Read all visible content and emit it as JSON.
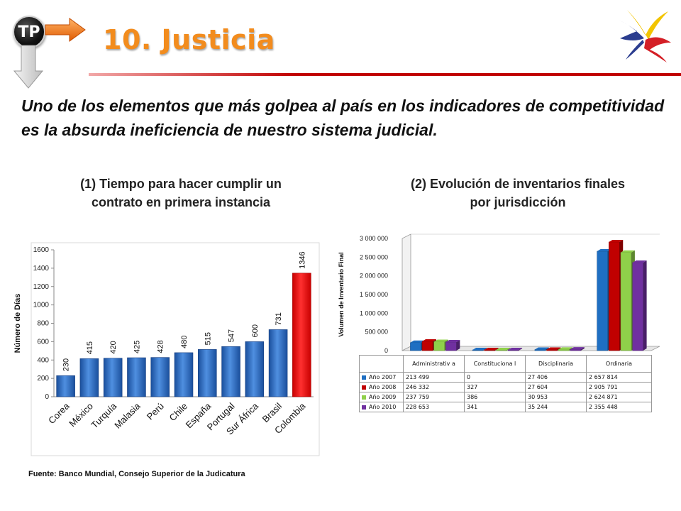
{
  "header": {
    "badge": "TP",
    "title": "10. Justicia",
    "subtitle": "Uno de los elementos que más golpea al país en los indicadores de competitividad es la absurda ineficiencia de nuestro sistema judicial."
  },
  "colors": {
    "accent_orange": "#f28c1e",
    "rule_red": "#c00000",
    "bar_blue": "#2e6cc4",
    "bar_highlight_red": "#ff0000"
  },
  "chart_data": [
    {
      "type": "bar",
      "title": "(1) Tiempo para hacer cumplir un\ncontrato en primera instancia",
      "ylabel": "Número de Días",
      "xlabel": "",
      "ylim": [
        0,
        1600
      ],
      "yticks": [
        0,
        200,
        400,
        600,
        800,
        1000,
        1200,
        1400,
        1600
      ],
      "categories": [
        "Corea",
        "México",
        "Turquía",
        "Malasia",
        "Perú",
        "Chile",
        "España",
        "Portugal",
        "Sur África",
        "Brasil",
        "Colombia"
      ],
      "values": [
        230,
        415,
        420,
        425,
        428,
        480,
        515,
        547,
        600,
        731,
        1346
      ],
      "highlight": "Colombia",
      "grid": false,
      "data_labels": true
    },
    {
      "type": "bar",
      "title": "(2) Evolución de inventarios finales\npor jurisdicción",
      "ylabel": "Volumen de Inventario Final",
      "xlabel": "",
      "ylim": [
        0,
        3000000
      ],
      "yticks": [
        0,
        500000,
        1000000,
        1500000,
        2000000,
        2500000,
        3000000
      ],
      "ytick_labels": [
        "0",
        "500 000",
        "1 000 000",
        "1 500 000",
        "2 000 000",
        "2 500 000",
        "3 000 000"
      ],
      "categories": [
        "Administrativa",
        "Constitucional",
        "Disciplinaria",
        "Ordinaria"
      ],
      "category_labels": [
        "Administrativ\na",
        "Constituciona\nl",
        "Disciplinaria",
        "Ordinaria"
      ],
      "series": [
        {
          "name": "Año  2007",
          "color": "#1f6fc2",
          "values": [
            213499,
            0,
            27406,
            2657814
          ],
          "labels": [
            "213 499",
            "0",
            "27 406",
            "2 657 814"
          ]
        },
        {
          "name": "Año  2008",
          "color": "#c00000",
          "values": [
            246332,
            327,
            27604,
            2905791
          ],
          "labels": [
            "246 332",
            "327",
            "27 604",
            "2 905 791"
          ]
        },
        {
          "name": "Año  2009",
          "color": "#8fd04a",
          "values": [
            237759,
            386,
            30953,
            2624871
          ],
          "labels": [
            "237 759",
            "386",
            "30 953",
            "2 624 871"
          ]
        },
        {
          "name": "Año  2010",
          "color": "#7030a0",
          "values": [
            228653,
            341,
            35244,
            2355448
          ],
          "labels": [
            "228 653",
            "341",
            "35 244",
            "2 355 448"
          ]
        }
      ],
      "legend": "data-table-below"
    }
  ],
  "footer": {
    "source": "Fuente: Banco Mundial, Consejo Superior de la Judicatura"
  }
}
